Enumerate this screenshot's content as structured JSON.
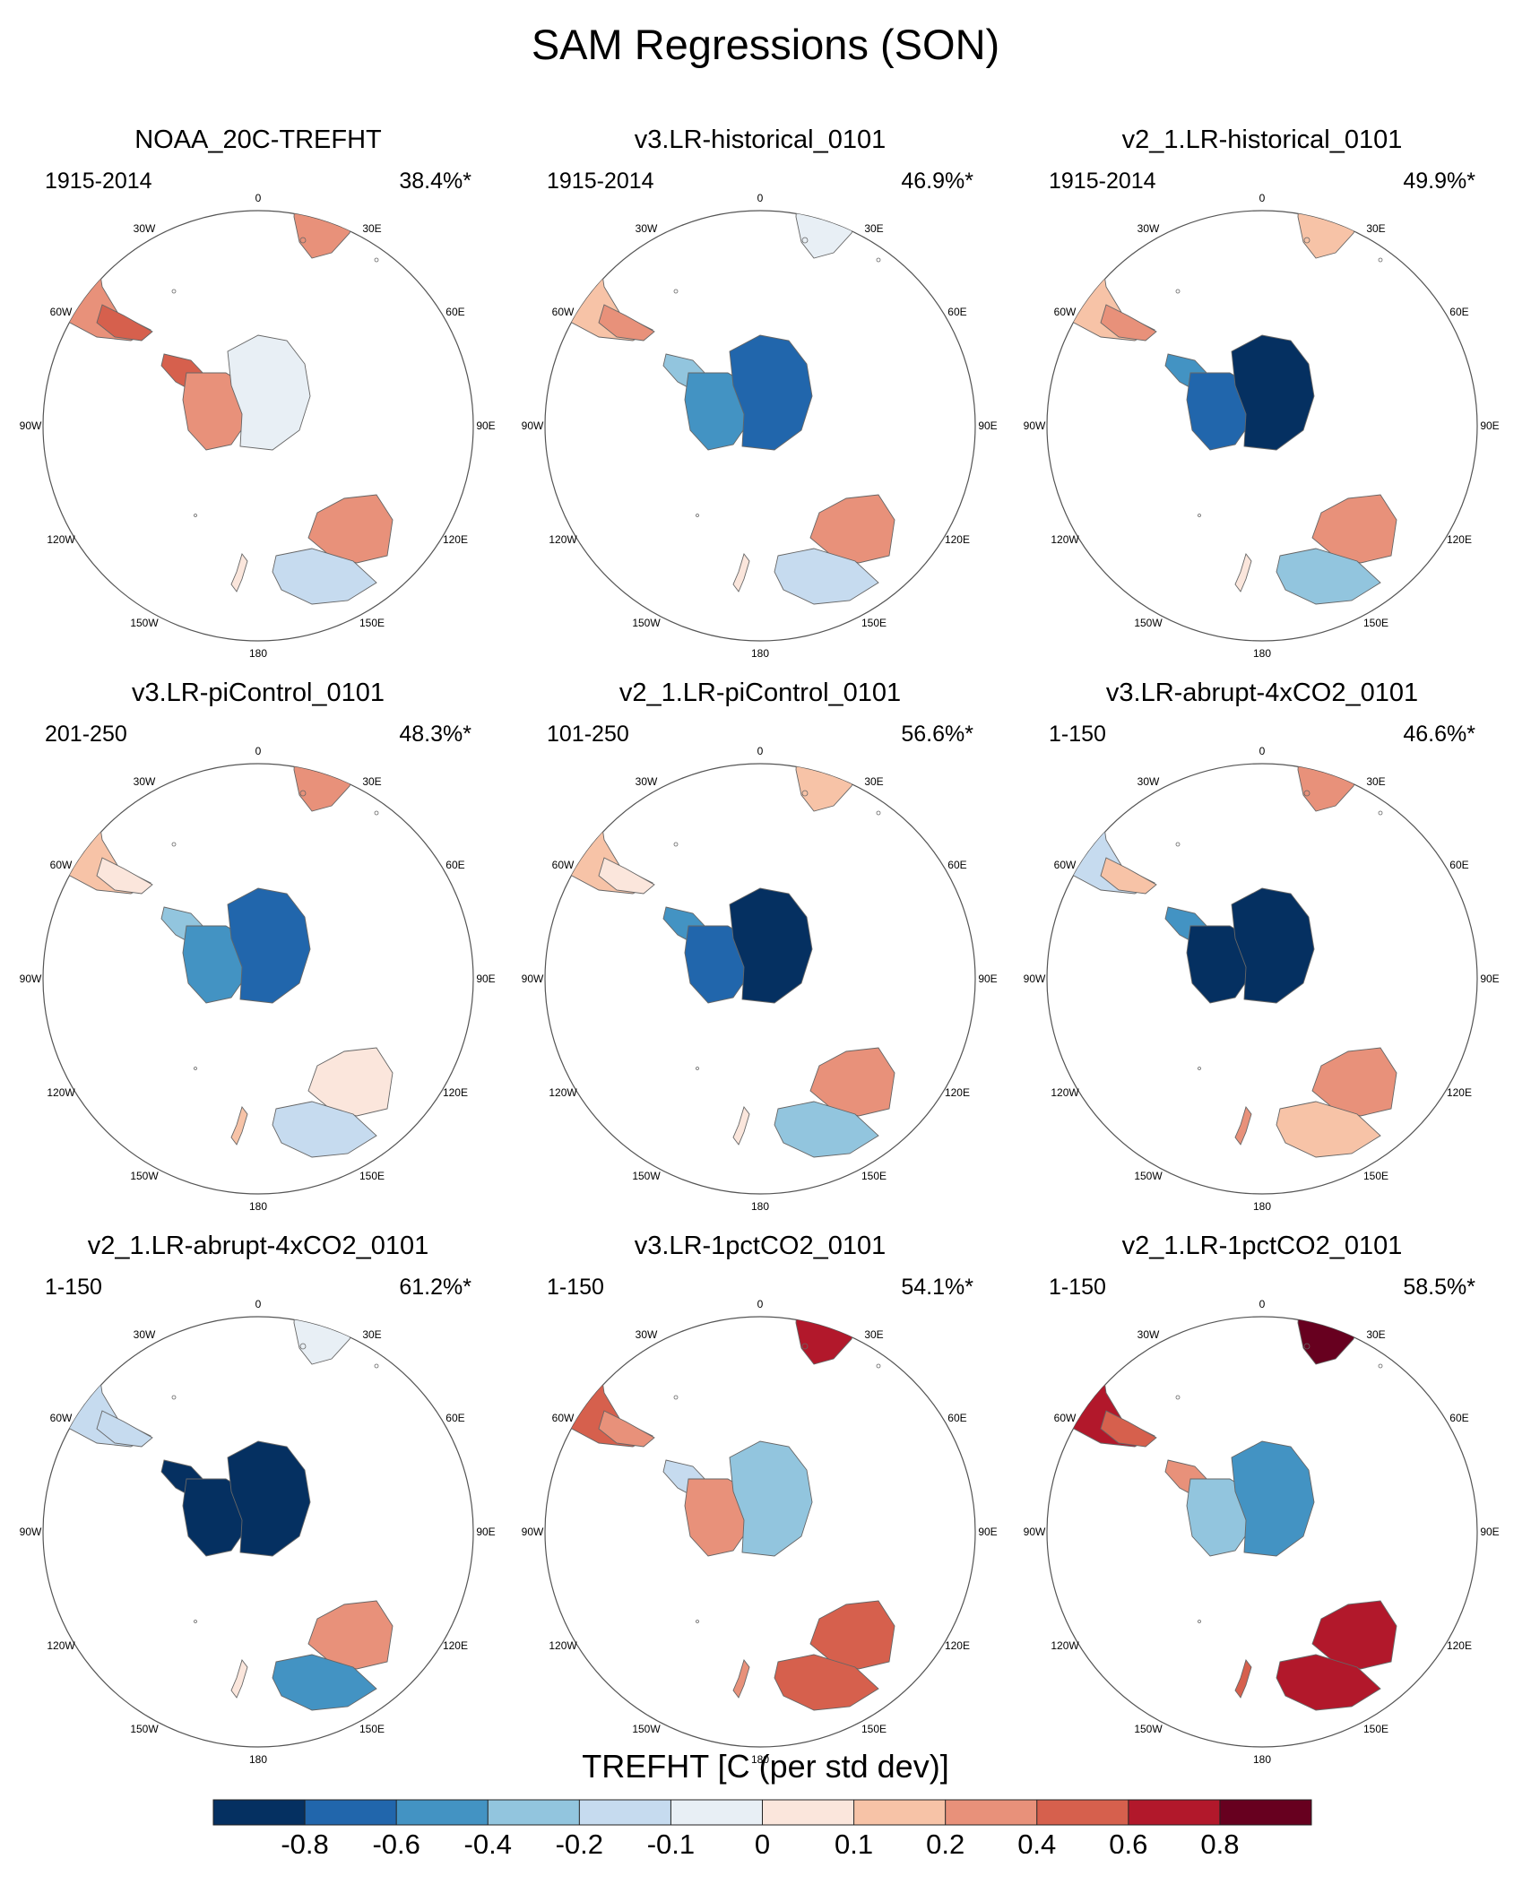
{
  "figure": {
    "title": "SAM Regressions (SON)"
  },
  "chart_data": {
    "type": "map",
    "projection": "south-polar-stereographic",
    "season": "SON",
    "variable": "TREFHT",
    "longitude_labels": [
      "0",
      "30E",
      "60E",
      "90E",
      "120E",
      "150E",
      "180",
      "150W",
      "120W",
      "90W",
      "60W",
      "30W"
    ],
    "panels": [
      {
        "title": "NOAA_20C-TREFHT",
        "period": "1915-2014",
        "variance": "38.4%*",
        "regions": {
          "southern_africa": 0.3,
          "south_america": 0.2,
          "south_america_tip": 0.45,
          "antarctic_peninsula": 0.45,
          "west_antarctica": 0.3,
          "east_antarctica": -0.1,
          "australia_north": 0.35,
          "australia_south": -0.15,
          "new_zealand": 0.05
        }
      },
      {
        "title": "v3.LR-historical_0101",
        "period": "1915-2014",
        "variance": "46.9%*",
        "regions": {
          "southern_africa": -0.05,
          "south_america": 0.1,
          "south_america_tip": 0.25,
          "antarctic_peninsula": -0.3,
          "west_antarctica": -0.45,
          "east_antarctica": -0.7,
          "australia_north": 0.25,
          "australia_south": -0.15,
          "new_zealand": 0.0
        }
      },
      {
        "title": "v2_1.LR-historical_0101",
        "period": "1915-2014",
        "variance": "49.9%*",
        "regions": {
          "southern_africa": 0.1,
          "south_america": 0.1,
          "south_america_tip": 0.3,
          "antarctic_peninsula": -0.5,
          "west_antarctica": -0.7,
          "east_antarctica": -0.85,
          "australia_north": 0.2,
          "australia_south": -0.3,
          "new_zealand": 0.0
        }
      },
      {
        "title": "v3.LR-piControl_0101",
        "period": "201-250",
        "variance": "48.3%*",
        "regions": {
          "southern_africa": 0.25,
          "south_america": 0.15,
          "south_america_tip": 0.05,
          "antarctic_peninsula": -0.3,
          "west_antarctica": -0.45,
          "east_antarctica": -0.65,
          "australia_north": 0.05,
          "australia_south": -0.2,
          "new_zealand": 0.15
        }
      },
      {
        "title": "v2_1.LR-piControl_0101",
        "period": "101-250",
        "variance": "56.6%*",
        "regions": {
          "southern_africa": 0.15,
          "south_america": 0.15,
          "south_america_tip": 0.05,
          "antarctic_peninsula": -0.5,
          "west_antarctica": -0.7,
          "east_antarctica": -0.85,
          "australia_north": 0.2,
          "australia_south": -0.3,
          "new_zealand": 0.0
        }
      },
      {
        "title": "v3.LR-abrupt-4xCO2_0101",
        "period": "1-150",
        "variance": "46.6%*",
        "regions": {
          "southern_africa": 0.3,
          "south_america": -0.2,
          "south_america_tip": 0.15,
          "antarctic_peninsula": -0.6,
          "west_antarctica": -0.85,
          "east_antarctica": -0.9,
          "australia_north": 0.3,
          "australia_south": 0.15,
          "new_zealand": 0.2
        }
      },
      {
        "title": "v2_1.LR-abrupt-4xCO2_0101",
        "period": "1-150",
        "variance": "61.2%*",
        "regions": {
          "southern_africa": -0.1,
          "south_america": -0.2,
          "south_america_tip": -0.2,
          "antarctic_peninsula": -0.9,
          "west_antarctica": -0.95,
          "east_antarctica": -0.95,
          "australia_north": 0.25,
          "australia_south": -0.45,
          "new_zealand": 0.0
        }
      },
      {
        "title": "v3.LR-1pctCO2_0101",
        "period": "1-150",
        "variance": "54.1%*",
        "regions": {
          "southern_africa": 0.65,
          "south_america": 0.45,
          "south_america_tip": 0.35,
          "antarctic_peninsula": -0.2,
          "west_antarctica": 0.25,
          "east_antarctica": -0.35,
          "australia_north": 0.55,
          "australia_south": 0.45,
          "new_zealand": 0.3
        }
      },
      {
        "title": "v2_1.LR-1pctCO2_0101",
        "period": "1-150",
        "variance": "58.5%*",
        "regions": {
          "southern_africa": 0.85,
          "south_america": 0.6,
          "south_america_tip": 0.45,
          "antarctic_peninsula": 0.25,
          "west_antarctica": -0.35,
          "east_antarctica": -0.5,
          "australia_north": 0.6,
          "australia_south": 0.75,
          "new_zealand": 0.55
        }
      }
    ],
    "colorbar": {
      "title": "TREFHT [C (per std dev)]",
      "levels": [
        -0.8,
        -0.6,
        -0.4,
        -0.2,
        -0.1,
        0,
        0.1,
        0.2,
        0.4,
        0.6,
        0.8
      ],
      "tick_labels": [
        "-0.8",
        "-0.6",
        "-0.4",
        "-0.2",
        "-0.1",
        "0",
        "0.1",
        "0.2",
        "0.4",
        "0.6",
        "0.8"
      ],
      "colors": [
        "#053061",
        "#2166ac",
        "#4393c3",
        "#92c5de",
        "#c6dbef",
        "#e8eff5",
        "#fbe6dc",
        "#f7c3a7",
        "#e8917a",
        "#d6604d",
        "#b2182b",
        "#67001f"
      ]
    }
  }
}
